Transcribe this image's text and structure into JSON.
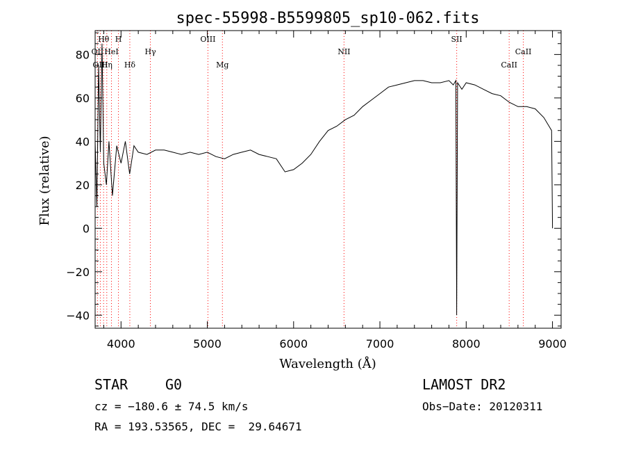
{
  "chart_data": {
    "type": "line",
    "title": "spec-55998-B5599805_sp10-062.fits",
    "xlabel": "Wavelength (Å)",
    "ylabel": "Flux (relative)",
    "xlim": [
      3700,
      9100
    ],
    "ylim": [
      -46,
      91
    ],
    "x_ticks": [
      4000,
      5000,
      6000,
      7000,
      8000,
      9000
    ],
    "y_ticks": [
      -40,
      -20,
      0,
      20,
      40,
      60,
      80
    ],
    "grid": false,
    "line_color": "#000000",
    "marker_color": "#ff0000",
    "series": [
      {
        "x": [
          3700,
          3720,
          3740,
          3760,
          3780,
          3800,
          3830,
          3860,
          3900,
          3950,
          4000,
          4050,
          4100,
          4150,
          4200,
          4300,
          4400,
          4500,
          4600,
          4700,
          4800,
          4900,
          5000,
          5100,
          5200,
          5300,
          5400,
          5500,
          5600,
          5700,
          5800,
          5900,
          6000,
          6100,
          6200,
          6300,
          6400,
          6500,
          6600,
          6700,
          6800,
          6900,
          7000,
          7100,
          7200,
          7300,
          7400,
          7500,
          7600,
          7700,
          7800,
          7850,
          7880,
          7890,
          7900,
          7950,
          8000,
          8100,
          8200,
          8300,
          8400,
          8500,
          8600,
          8700,
          8800,
          8900,
          8960,
          8990,
          9000
        ],
        "y": [
          40,
          10,
          75,
          35,
          85,
          30,
          20,
          40,
          15,
          38,
          30,
          40,
          25,
          38,
          35,
          34,
          36,
          36,
          35,
          34,
          35,
          34,
          35,
          33,
          32,
          34,
          35,
          36,
          34,
          33,
          32,
          26,
          27,
          30,
          34,
          40,
          45,
          47,
          50,
          52,
          56,
          59,
          62,
          65,
          66,
          67,
          68,
          68,
          67,
          67,
          68,
          66,
          68,
          -40,
          67,
          64,
          67,
          66,
          64,
          62,
          61,
          58,
          56,
          56,
          55,
          51,
          47,
          45,
          0
        ]
      }
    ],
    "emission_lines": [
      {
        "label": "Hθ",
        "x": 3798,
        "row": 0
      },
      {
        "label": "H",
        "x": 3970,
        "row": 0
      },
      {
        "label": "OIII",
        "x": 5007,
        "row": 0
      },
      {
        "label": "SII",
        "x": 7890,
        "row": 0
      },
      {
        "label": "OII",
        "x": 3727,
        "row": 1
      },
      {
        "label": "HeI",
        "x": 3889,
        "row": 1
      },
      {
        "label": "Hγ",
        "x": 4340,
        "row": 1
      },
      {
        "label": "NII",
        "x": 6584,
        "row": 1
      },
      {
        "label": "CaII",
        "x": 8662,
        "row": 1
      },
      {
        "label": "OIII",
        "x": 3760,
        "row": 2
      },
      {
        "label": "Hη",
        "x": 3835,
        "row": 2
      },
      {
        "label": "Hδ",
        "x": 4102,
        "row": 2
      },
      {
        "label": "Mg",
        "x": 5175,
        "row": 2
      },
      {
        "label": "CaII",
        "x": 8498,
        "row": 2
      }
    ]
  },
  "info": {
    "obj_class": "STAR",
    "subclass": "G0",
    "survey": "LAMOST DR2",
    "cz": "cz = −180.6 ± 74.5 km/s",
    "obs_date": "Obs−Date: 20120311",
    "radec": "RA = 193.53565, DEC =  29.64671"
  }
}
